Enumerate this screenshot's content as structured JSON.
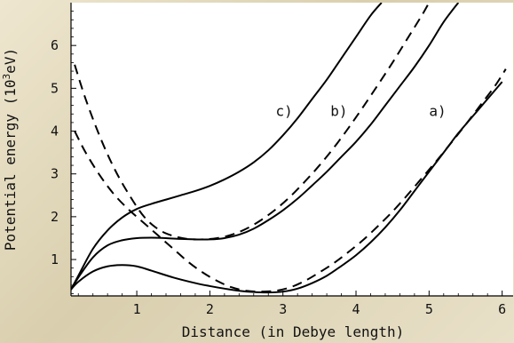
{
  "chart_data": {
    "type": "line",
    "title": "",
    "xlabel": "Distance (in Debye length)",
    "ylabel_prefix": "Potential energy (10",
    "ylabel_sup": "3",
    "ylabel_suffix": "eV)",
    "xlim": [
      0.1,
      6.15
    ],
    "ylim": [
      0.15,
      7.0
    ],
    "xticks": [
      "1",
      "2",
      "3",
      "4",
      "5",
      "6"
    ],
    "yticks": [
      "1",
      "2",
      "3",
      "4",
      "5",
      "6"
    ],
    "grid": false,
    "series": [
      {
        "style": "solid",
        "x": [
          0.1,
          0.2,
          0.4,
          0.6,
          0.8,
          1.0,
          1.2,
          1.5,
          1.8,
          2.0,
          2.2,
          2.4,
          2.6,
          2.8,
          3.0,
          3.2,
          3.4,
          3.6,
          3.8,
          4.0,
          4.2,
          4.4,
          4.6,
          4.8,
          5.0,
          5.2,
          5.4,
          5.6,
          5.8,
          6.0
        ],
        "y": [
          0.3,
          0.48,
          0.72,
          0.84,
          0.87,
          0.84,
          0.74,
          0.58,
          0.45,
          0.38,
          0.32,
          0.27,
          0.24,
          0.23,
          0.25,
          0.32,
          0.45,
          0.62,
          0.85,
          1.1,
          1.4,
          1.75,
          2.15,
          2.6,
          3.05,
          3.5,
          3.95,
          4.35,
          4.75,
          5.15
        ]
      },
      {
        "style": "solid",
        "x": [
          0.1,
          0.2,
          0.4,
          0.6,
          0.8,
          1.0,
          1.2,
          1.4,
          1.6,
          1.8,
          2.0,
          2.2,
          2.4,
          2.6,
          2.8,
          3.0,
          3.2,
          3.4,
          3.6,
          3.8,
          4.0,
          4.2,
          4.4,
          4.6,
          4.8,
          5.0,
          5.2,
          5.4
        ],
        "y": [
          0.3,
          0.58,
          1.05,
          1.33,
          1.45,
          1.5,
          1.51,
          1.5,
          1.48,
          1.47,
          1.47,
          1.5,
          1.58,
          1.72,
          1.92,
          2.15,
          2.42,
          2.73,
          3.05,
          3.4,
          3.75,
          4.15,
          4.6,
          5.05,
          5.5,
          6.0,
          6.55,
          7.0
        ]
      },
      {
        "style": "solid",
        "x": [
          0.1,
          0.2,
          0.4,
          0.6,
          0.8,
          1.0,
          1.2,
          1.4,
          1.6,
          1.8,
          2.0,
          2.2,
          2.4,
          2.6,
          2.8,
          3.0,
          3.2,
          3.4,
          3.6,
          3.8,
          4.0,
          4.2,
          4.35
        ],
        "y": [
          0.3,
          0.62,
          1.25,
          1.68,
          1.98,
          2.18,
          2.3,
          2.4,
          2.5,
          2.6,
          2.72,
          2.87,
          3.05,
          3.27,
          3.55,
          3.9,
          4.3,
          4.75,
          5.2,
          5.7,
          6.2,
          6.7,
          7.0
        ]
      },
      {
        "style": "dashed",
        "x": [
          0.15,
          0.3,
          0.5,
          0.7,
          0.9,
          1.1,
          1.3,
          1.5,
          1.7,
          1.9,
          2.1,
          2.3,
          2.5,
          2.7,
          2.9,
          3.1,
          3.3,
          3.5,
          3.7,
          3.9,
          4.1,
          4.3,
          4.5,
          4.7,
          4.9,
          5.1,
          5.3,
          5.5,
          5.7,
          5.9,
          6.05
        ],
        "y": [
          4.0,
          3.5,
          2.95,
          2.5,
          2.15,
          1.85,
          1.55,
          1.25,
          0.95,
          0.7,
          0.5,
          0.35,
          0.27,
          0.25,
          0.27,
          0.35,
          0.5,
          0.7,
          0.92,
          1.18,
          1.46,
          1.78,
          2.12,
          2.5,
          2.9,
          3.3,
          3.72,
          4.15,
          4.6,
          5.05,
          5.45
        ]
      },
      {
        "style": "dashed",
        "x": [
          0.15,
          0.3,
          0.5,
          0.7,
          0.9,
          1.1,
          1.3,
          1.5,
          1.7,
          1.9,
          2.1,
          2.3,
          2.5,
          2.7,
          2.9,
          3.1,
          3.3,
          3.5,
          3.7,
          3.9,
          4.1,
          4.3,
          4.5,
          4.7,
          4.9,
          5.0
        ],
        "y": [
          5.55,
          4.75,
          3.85,
          3.1,
          2.5,
          2.0,
          1.7,
          1.55,
          1.48,
          1.47,
          1.5,
          1.58,
          1.72,
          1.92,
          2.17,
          2.47,
          2.82,
          3.2,
          3.62,
          4.08,
          4.57,
          5.08,
          5.6,
          6.15,
          6.7,
          7.0
        ]
      }
    ],
    "annotations": [
      {
        "text": "a)",
        "x": 5.0,
        "y": 4.35
      },
      {
        "text": "b)",
        "x": 3.65,
        "y": 4.35
      },
      {
        "text": "c)",
        "x": 2.9,
        "y": 4.35
      }
    ]
  }
}
